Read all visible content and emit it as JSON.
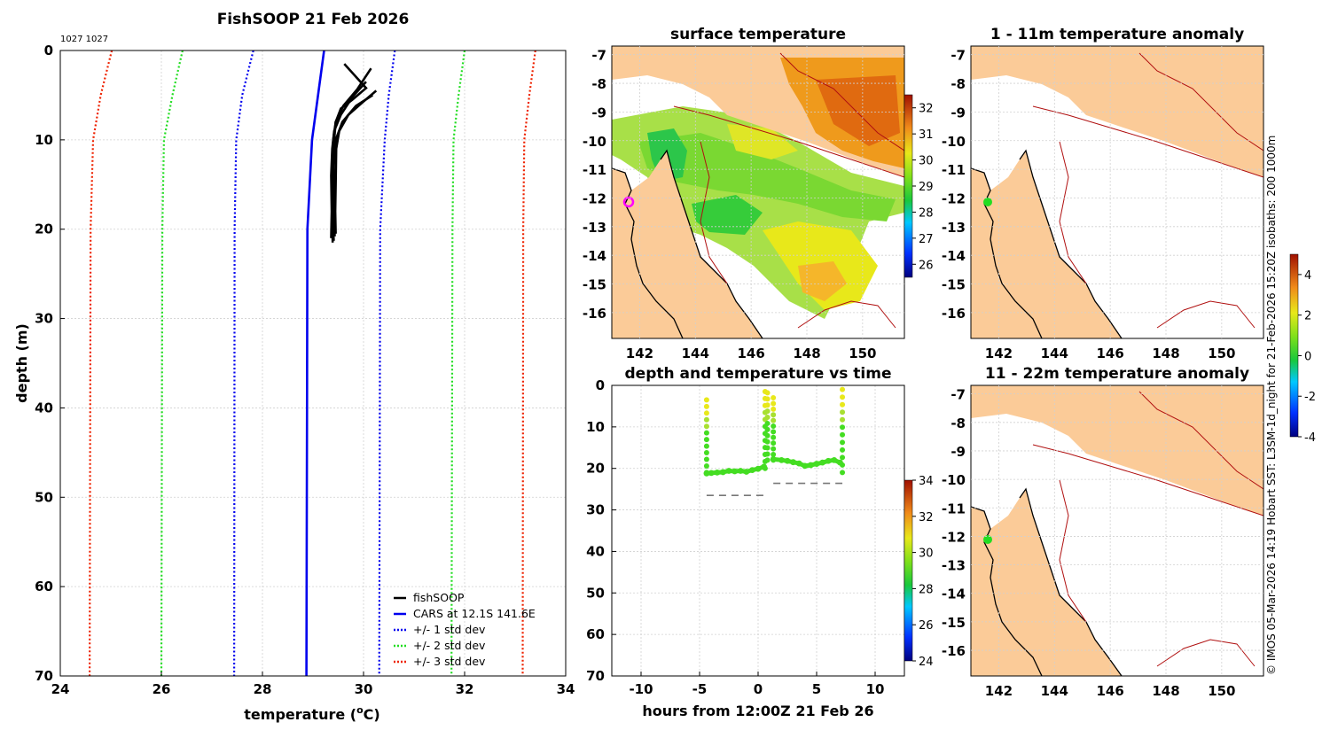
{
  "page": {
    "main_title": "FishSOOP 21 Feb 2026",
    "corner_label": "1027 1027",
    "side_note": "© IMOS 05-Mar-2026 14:19 Hobart SST: L3SM-1d_night for 21-Feb-2026 15:20Z isobaths: 200  1000m"
  },
  "colors": {
    "fishsoop": "#000000",
    "cars": "#0000ee",
    "std1": "#0000ee",
    "std2": "#22dd22",
    "std3": "#ee2200",
    "land": "#fbcb98",
    "isobath": "#b01010",
    "coast": "#000000",
    "marker_ring": "#ff00ff",
    "marker_green": "#22dd22"
  },
  "chart_data": [
    {
      "type": "line",
      "id": "profile",
      "title": "FishSOOP 21 Feb 2026",
      "xlabel": "temperature (°C)",
      "xlabel_main": "temperature (",
      "xlabel_sup": "o",
      "xlabel_end": "C)",
      "ylabel": "depth (m)",
      "xlim": [
        24,
        34
      ],
      "ylim": [
        0,
        70
      ],
      "y_inverted": true,
      "xticks": [
        24,
        26,
        28,
        30,
        32,
        34
      ],
      "yticks": [
        0,
        10,
        20,
        30,
        40,
        50,
        60,
        70
      ],
      "grid": true,
      "legend_position": "bottom-right",
      "legend": [
        "fishSOOP",
        "CARS at 12.1S 141.6E",
        "+/- 1 std dev",
        "+/- 2 std dev",
        "+/- 3 std dev"
      ],
      "series": [
        {
          "name": "CARS at 12.1S 141.6E",
          "style": "solid",
          "color": "#0000ee",
          "points": [
            [
              29.22,
              0
            ],
            [
              29.1,
              5
            ],
            [
              28.98,
              10
            ],
            [
              28.89,
              20
            ],
            [
              28.87,
              70
            ]
          ]
        },
        {
          "name": "+/- 1 std dev",
          "style": "dotted",
          "color": "#0000ee",
          "points": [
            [
              27.82,
              0
            ],
            [
              27.6,
              5
            ],
            [
              27.48,
              10
            ],
            [
              27.45,
              20
            ],
            [
              27.44,
              70
            ]
          ]
        },
        {
          "name": "+/- 1 std dev",
          "style": "dotted",
          "color": "#0000ee",
          "points": [
            [
              30.62,
              0
            ],
            [
              30.5,
              5
            ],
            [
              30.42,
              10
            ],
            [
              30.33,
              20
            ],
            [
              30.31,
              70
            ]
          ]
        },
        {
          "name": "+/- 2 std dev",
          "style": "dotted",
          "color": "#22dd22",
          "points": [
            [
              26.42,
              0
            ],
            [
              26.22,
              5
            ],
            [
              26.05,
              10
            ],
            [
              26.02,
              20
            ],
            [
              26.0,
              70
            ]
          ]
        },
        {
          "name": "+/- 2 std dev",
          "style": "dotted",
          "color": "#22dd22",
          "points": [
            [
              32.0,
              0
            ],
            [
              31.88,
              5
            ],
            [
              31.78,
              10
            ],
            [
              31.76,
              20
            ],
            [
              31.74,
              70
            ]
          ]
        },
        {
          "name": "+/- 3 std dev",
          "style": "dotted",
          "color": "#ee2200",
          "points": [
            [
              25.02,
              0
            ],
            [
              24.8,
              5
            ],
            [
              24.65,
              10
            ],
            [
              24.6,
              20
            ],
            [
              24.58,
              70
            ]
          ]
        },
        {
          "name": "+/- 3 std dev",
          "style": "dotted",
          "color": "#ee2200",
          "points": [
            [
              33.4,
              0
            ],
            [
              33.28,
              5
            ],
            [
              33.18,
              10
            ],
            [
              33.16,
              20
            ],
            [
              33.15,
              70
            ]
          ]
        },
        {
          "name": "fishSOOP",
          "style": "solid",
          "color": "#000000",
          "points": [
            [
              29.62,
              1.5
            ],
            [
              30.05,
              4.2
            ],
            [
              29.78,
              5.5
            ],
            [
              29.55,
              6.5
            ],
            [
              29.45,
              8
            ],
            [
              29.4,
              10
            ],
            [
              29.38,
              13
            ],
            [
              29.4,
              16
            ],
            [
              29.38,
              19
            ],
            [
              29.39,
              21.5
            ]
          ]
        },
        {
          "name": "fishSOOP",
          "style": "solid",
          "color": "#000000",
          "points": [
            [
              30.15,
              2
            ],
            [
              29.88,
              4.3
            ],
            [
              29.6,
              6.2
            ],
            [
              29.45,
              8
            ],
            [
              29.42,
              10
            ],
            [
              29.4,
              14
            ],
            [
              29.42,
              17
            ],
            [
              29.4,
              20
            ],
            [
              29.41,
              21.3
            ]
          ]
        },
        {
          "name": "fishSOOP",
          "style": "solid",
          "color": "#000000",
          "points": [
            [
              30.05,
              3.5
            ],
            [
              29.78,
              5.2
            ],
            [
              29.55,
              7.2
            ],
            [
              29.42,
              9
            ],
            [
              29.38,
              11
            ],
            [
              29.36,
              14
            ],
            [
              29.37,
              18
            ],
            [
              29.36,
              21
            ]
          ]
        },
        {
          "name": "fishSOOP",
          "style": "solid",
          "color": "#000000",
          "points": [
            [
              30.18,
              5
            ],
            [
              29.85,
              6.2
            ],
            [
              29.58,
              8
            ],
            [
              29.45,
              10
            ],
            [
              29.41,
              13
            ],
            [
              29.43,
              16
            ],
            [
              29.42,
              19
            ],
            [
              29.43,
              20.8
            ]
          ]
        },
        {
          "name": "fishSOOP",
          "style": "solid",
          "color": "#000000",
          "points": [
            [
              30.25,
              4.5
            ],
            [
              29.98,
              5.8
            ],
            [
              29.7,
              7.2
            ],
            [
              29.52,
              9
            ],
            [
              29.46,
              11
            ],
            [
              29.45,
              15
            ],
            [
              29.44,
              18
            ],
            [
              29.45,
              20.5
            ]
          ]
        }
      ]
    },
    {
      "type": "scatter",
      "id": "depth_time",
      "title": "depth and temperature vs time",
      "xlabel": "hours from 12:00Z 21 Feb 26",
      "ylabel": "",
      "xlim": [
        -12.5,
        12.5
      ],
      "ylim": [
        0,
        70
      ],
      "y_inverted": true,
      "xticks": [
        -10,
        -5,
        0,
        5,
        10
      ],
      "yticks": [
        0,
        10,
        20,
        30,
        40,
        50,
        60,
        70
      ],
      "grid": true,
      "colorbar": {
        "min": 24,
        "max": 34,
        "ticks": [
          24,
          26,
          28,
          30,
          32,
          34
        ]
      },
      "series": [
        {
          "name": "tow 1 depth (hours, m)",
          "color": "#44dd22",
          "points": [
            [
              -4.4,
              21.2
            ],
            [
              -4.0,
              21.1
            ],
            [
              -3.5,
              21.0
            ],
            [
              -3.0,
              20.9
            ],
            [
              -2.5,
              20.6
            ],
            [
              -2.0,
              20.7
            ],
            [
              -1.5,
              20.6
            ],
            [
              -1.0,
              20.8
            ],
            [
              -0.5,
              20.4
            ],
            [
              0.0,
              20.1
            ],
            [
              0.5,
              19.6
            ]
          ]
        },
        {
          "name": "tow 2 depth (hours, m)",
          "color": "#44dd22",
          "points": [
            [
              1.3,
              17.8
            ],
            [
              2.0,
              18.0
            ],
            [
              2.5,
              18.2
            ],
            [
              3.0,
              18.5
            ],
            [
              3.5,
              18.8
            ],
            [
              4.0,
              19.4
            ],
            [
              4.5,
              19.2
            ],
            [
              5.0,
              18.9
            ],
            [
              5.5,
              18.6
            ],
            [
              6.0,
              18.2
            ],
            [
              6.5,
              18.0
            ],
            [
              7.0,
              18.6
            ]
          ]
        },
        {
          "name": "descent casts (hours, m from, m to)",
          "color": "#e8e81a",
          "points": [
            [
              -4.4,
              3.5,
              21
            ],
            [
              0.6,
              1.5,
              20
            ],
            [
              0.8,
              1.8,
              18
            ],
            [
              1.3,
              3.0,
              18
            ],
            [
              7.2,
              1.0,
              21
            ]
          ]
        },
        {
          "name": "bottom reference (hours from, hours to, m)",
          "color": "#777777",
          "points": [
            [
              -4.4,
              0.6,
              26.5
            ],
            [
              1.3,
              7.2,
              23.6
            ]
          ]
        }
      ]
    },
    {
      "type": "heatmap",
      "id": "map_sst",
      "title": "surface temperature",
      "xlim": [
        141,
        151.5
      ],
      "ylim": [
        -16.9,
        -6.7
      ],
      "xticks": [
        142,
        144,
        146,
        148,
        150
      ],
      "yticks": [
        -7,
        -8,
        -9,
        -10,
        -11,
        -12,
        -13,
        -14,
        -15,
        -16
      ],
      "colorbar": {
        "min": 25.5,
        "max": 32.5,
        "ticks": [
          26,
          27,
          28,
          29,
          30,
          31,
          32
        ]
      },
      "marker": {
        "lon": 141.6,
        "lat": -12.1,
        "style": "magenta ring"
      }
    },
    {
      "type": "heatmap",
      "id": "map_anom_1_11",
      "title": "1 - 11m temperature anomaly",
      "xlim": [
        141,
        151.5
      ],
      "ylim": [
        -16.9,
        -6.7
      ],
      "xticks": [
        142,
        144,
        146,
        148,
        150
      ],
      "yticks": [
        -7,
        -8,
        -9,
        -10,
        -11,
        -12,
        -13,
        -14,
        -15,
        -16
      ],
      "marker": {
        "lon": 141.6,
        "lat": -12.1,
        "style": "green dot"
      }
    },
    {
      "type": "heatmap",
      "id": "map_anom_11_22",
      "title": "11 - 22m temperature anomaly",
      "xlim": [
        141,
        151.5
      ],
      "ylim": [
        -16.9,
        -6.7
      ],
      "xticks": [
        142,
        144,
        146,
        148,
        150
      ],
      "yticks": [
        -7,
        -8,
        -9,
        -10,
        -11,
        -12,
        -13,
        -14,
        -15,
        -16
      ],
      "colorbar": {
        "min": -4,
        "max": 5,
        "ticks": [
          -4,
          -2,
          0,
          2,
          4
        ]
      },
      "marker": {
        "lon": 141.6,
        "lat": -12.1,
        "style": "green dot"
      }
    }
  ]
}
